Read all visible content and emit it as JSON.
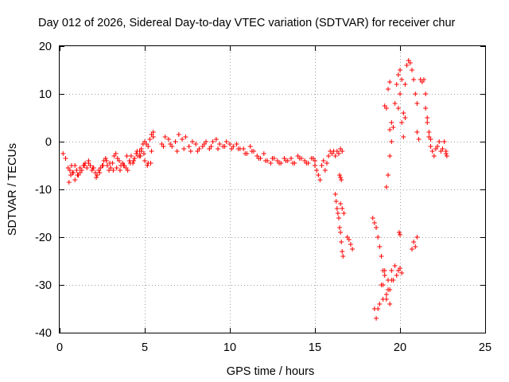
{
  "chart_data": {
    "type": "scatter",
    "title": "Day 012 of 2026, Sidereal Day-to-day VTEC variation (SDTVAR) for receiver chur",
    "xlabel": "GPS time / hours",
    "ylabel": "SDTVAR / TECUs",
    "xlim": [
      0,
      25
    ],
    "ylim": [
      -40,
      20
    ],
    "xticks": [
      0,
      5,
      10,
      15,
      20,
      25
    ],
    "yticks": [
      -40,
      -30,
      -20,
      -10,
      0,
      10,
      20
    ],
    "xtick_labels": [
      "0",
      "5",
      "10",
      "15",
      "20",
      "25"
    ],
    "ytick_labels": [
      "-40",
      "-30",
      "-20",
      "-10",
      "0",
      "10",
      "20"
    ],
    "grid": true,
    "marker": "+",
    "color": "#ff0000",
    "segments": [
      {
        "x": [
          0.2,
          0.35
        ],
        "y": [
          -2.5,
          -3.5
        ]
      },
      {
        "x": [
          0.5,
          0.6,
          0.7,
          0.8,
          0.9,
          1.0,
          1.1,
          1.2,
          1.3,
          1.4,
          1.5,
          1.6,
          1.7,
          1.8,
          1.9,
          2.0,
          2.1,
          2.2,
          2.3,
          2.4,
          2.5,
          2.6,
          2.7,
          2.8,
          2.9,
          3.0,
          3.1,
          3.2,
          3.3,
          3.4,
          3.5,
          3.6,
          3.7,
          3.8,
          3.9,
          4.0,
          4.1,
          4.2,
          4.3,
          4.4,
          4.5,
          4.6,
          4.7,
          4.8,
          4.9,
          5.0,
          5.1,
          5.2,
          5.3,
          5.4,
          5.5
        ],
        "y": [
          -5.5,
          -6,
          -5,
          -6.5,
          -5,
          -6,
          -7,
          -5.5,
          -6,
          -5,
          -4.5,
          -5.5,
          -4,
          -5,
          -6,
          -5.5,
          -6.5,
          -7,
          -6,
          -5.5,
          -5,
          -4,
          -3.5,
          -5,
          -6,
          -5.5,
          -4.5,
          -3,
          -2.5,
          -3.5,
          -4,
          -5,
          -4.5,
          -5,
          -5.5,
          -6,
          -4,
          -3,
          -4.5,
          -3.5,
          -2.5,
          -3,
          -2,
          -1.5,
          -0.5,
          0,
          -0.5,
          -1,
          0.5,
          1.5,
          1
        ]
      },
      {
        "x": [
          0.55,
          0.65,
          0.75,
          0.9,
          1.05,
          1.2,
          1.45,
          1.7,
          1.95,
          2.15,
          2.35,
          2.55,
          2.75,
          2.95,
          3.15,
          3.35,
          3.55,
          3.75,
          3.95,
          4.15,
          4.35,
          4.55,
          4.75,
          4.95,
          5.15,
          5.35
        ],
        "y": [
          -8.5,
          -7,
          -6.5,
          -8,
          -7,
          -6.5,
          -5,
          -4.5,
          -5.5,
          -7.5,
          -6.5,
          -5,
          -4,
          -4.5,
          -6,
          -5.5,
          -6,
          -5,
          -3,
          -4.5,
          -4,
          -2,
          -3,
          -2.5,
          -5,
          -4.5
        ]
      },
      {
        "x": [
          4.7,
          4.8,
          5.0,
          5.2,
          5.4,
          5.5
        ],
        "y": [
          -3,
          -2,
          -4,
          -4.5,
          -2,
          2
        ]
      },
      {
        "x": [
          6.0,
          6.2,
          6.4,
          6.6,
          6.8,
          7.0,
          7.2,
          7.4,
          7.6,
          7.8,
          8.0,
          8.2,
          8.4,
          8.6,
          8.8,
          9.0,
          9.2,
          9.4,
          9.6,
          9.8,
          10.0,
          10.2,
          10.4,
          10.6,
          10.8,
          11.0,
          11.2,
          11.4,
          11.6,
          11.8,
          12.0,
          12.2,
          12.4,
          12.6,
          12.8,
          13.0,
          13.2,
          13.4,
          13.6,
          13.8,
          14.0,
          14.2,
          14.4,
          14.6,
          14.8,
          15.0
        ],
        "y": [
          -0.5,
          1,
          0.5,
          -1,
          0,
          1.5,
          0.5,
          1,
          -1,
          0,
          -0.5,
          -1.5,
          -1,
          0,
          -1.5,
          0,
          0.5,
          -0.5,
          -1,
          0,
          -0.5,
          -1,
          -0.5,
          -1.5,
          -1.5,
          -2.5,
          -1,
          -2,
          -3,
          -3.5,
          -2.5,
          -4,
          -4.5,
          -3.5,
          -4,
          -4.5,
          -3.5,
          -4,
          -3.5,
          -4.5,
          -3,
          -3.5,
          -4,
          -4.5,
          -3.5,
          -4
        ]
      },
      {
        "x": [
          6.1,
          6.5,
          6.9,
          7.3,
          7.7,
          8.1,
          8.5,
          8.9,
          9.3,
          9.7,
          10.1,
          10.5,
          10.9,
          11.3,
          11.7,
          12.1,
          12.5,
          12.9,
          13.3,
          13.7,
          14.1,
          14.5,
          14.9
        ],
        "y": [
          -1,
          -0.5,
          -2,
          -1.5,
          -2,
          -2,
          -0.5,
          -1,
          -1.5,
          -1,
          -1.5,
          -1.5,
          -2.5,
          -2,
          -3.5,
          -4,
          -3.5,
          -4.5,
          -4,
          -4.5,
          -3.5,
          -4.5,
          -3.5
        ]
      },
      {
        "x": [
          15.0,
          15.1,
          15.2,
          15.3,
          15.4
        ],
        "y": [
          -5,
          -6,
          -7,
          -8,
          -5
        ]
      },
      {
        "x": [
          15.5,
          15.6,
          15.7,
          15.8,
          15.9,
          16.0,
          16.1,
          16.2,
          16.3,
          16.4,
          16.5,
          16.6
        ],
        "y": [
          -4,
          -6,
          -4.5,
          -3,
          -2,
          -2.5,
          -2,
          -3,
          -2,
          -2.5,
          -1.5,
          -2
        ]
      },
      {
        "x": [
          16.45,
          16.5,
          16.55
        ],
        "y": [
          -7,
          -7.5,
          -8
        ]
      },
      {
        "x": [
          16.2,
          16.25,
          16.3,
          16.35,
          16.4,
          16.45,
          16.5,
          16.55,
          16.6,
          16.65
        ],
        "y": [
          -11,
          -12.5,
          -14,
          -15,
          -16,
          -18,
          -19,
          -21,
          -23,
          -24
        ]
      },
      {
        "x": [
          16.5,
          16.6,
          16.7
        ],
        "y": [
          -13,
          -14,
          -15
        ]
      },
      {
        "x": [
          16.9,
          17.0,
          17.1,
          17.2
        ],
        "y": [
          -20,
          -20.5,
          -21.5,
          -22.5
        ]
      },
      {
        "x": [
          18.4,
          18.5,
          18.6,
          18.7,
          18.8,
          18.9,
          19.0
        ],
        "y": [
          -16,
          -17,
          -18,
          -20,
          -22,
          -24,
          -27
        ]
      },
      {
        "x": [
          18.5,
          18.6,
          18.7,
          18.8,
          18.9,
          19.0,
          19.1,
          19.2,
          19.3,
          19.4,
          19.5,
          19.6,
          19.7,
          19.8,
          19.9,
          20.0,
          20.1
        ],
        "y": [
          -35,
          -37,
          -35,
          -34,
          -30,
          -33,
          -28,
          -32,
          -29,
          -31,
          -27,
          -29,
          -26,
          -28,
          -27,
          -26.5,
          -27.5
        ]
      },
      {
        "x": [
          19.0,
          19.1,
          19.2,
          19.3,
          19.4,
          19.5
        ],
        "y": [
          -30,
          -27,
          -33,
          -31,
          -34,
          -29
        ]
      },
      {
        "x": [
          19.95,
          20.0
        ],
        "y": [
          -19,
          -19.5
        ]
      },
      {
        "x": [
          19.1,
          19.2,
          19.3,
          19.4
        ],
        "y": [
          7.5,
          7,
          11,
          12.5
        ]
      },
      {
        "x": [
          19.2,
          19.3,
          19.4,
          19.5
        ],
        "y": [
          -9.5,
          -7,
          -3,
          0
        ]
      },
      {
        "x": [
          19.4,
          19.5,
          19.6,
          19.7,
          19.8,
          19.9,
          20.0,
          20.1,
          20.2,
          20.3,
          20.4,
          20.5,
          20.6,
          20.7,
          20.8,
          20.9,
          21.0
        ],
        "y": [
          2.5,
          4,
          3,
          8,
          12,
          14,
          15,
          13,
          6,
          12,
          16,
          17,
          16.5,
          15,
          13,
          10,
          8
        ]
      },
      {
        "x": [
          19.9,
          20.0,
          20.1,
          20.2,
          20.3
        ],
        "y": [
          7,
          10,
          4,
          1,
          5
        ]
      },
      {
        "x": [
          20.7,
          20.8,
          20.9,
          21.0
        ],
        "y": [
          -22.5,
          -21,
          -22,
          -20
        ]
      },
      {
        "x": [
          21.0,
          21.1,
          21.2,
          21.3,
          21.4,
          21.5,
          21.6,
          21.7,
          21.8,
          21.9,
          22.0,
          22.1,
          22.2,
          22.3,
          22.4,
          22.5,
          22.6,
          22.7
        ],
        "y": [
          2,
          0.5,
          13,
          12.5,
          13,
          7,
          4,
          1,
          -1,
          -2,
          -3,
          -1.5,
          -1,
          0,
          -2,
          -1.5,
          0,
          -2
        ]
      },
      {
        "x": [
          21.5,
          21.6,
          21.7,
          21.8
        ],
        "y": [
          10,
          5,
          2,
          0.5
        ]
      },
      {
        "x": [
          22.7,
          22.75
        ],
        "y": [
          -2.5,
          -3
        ]
      }
    ]
  }
}
